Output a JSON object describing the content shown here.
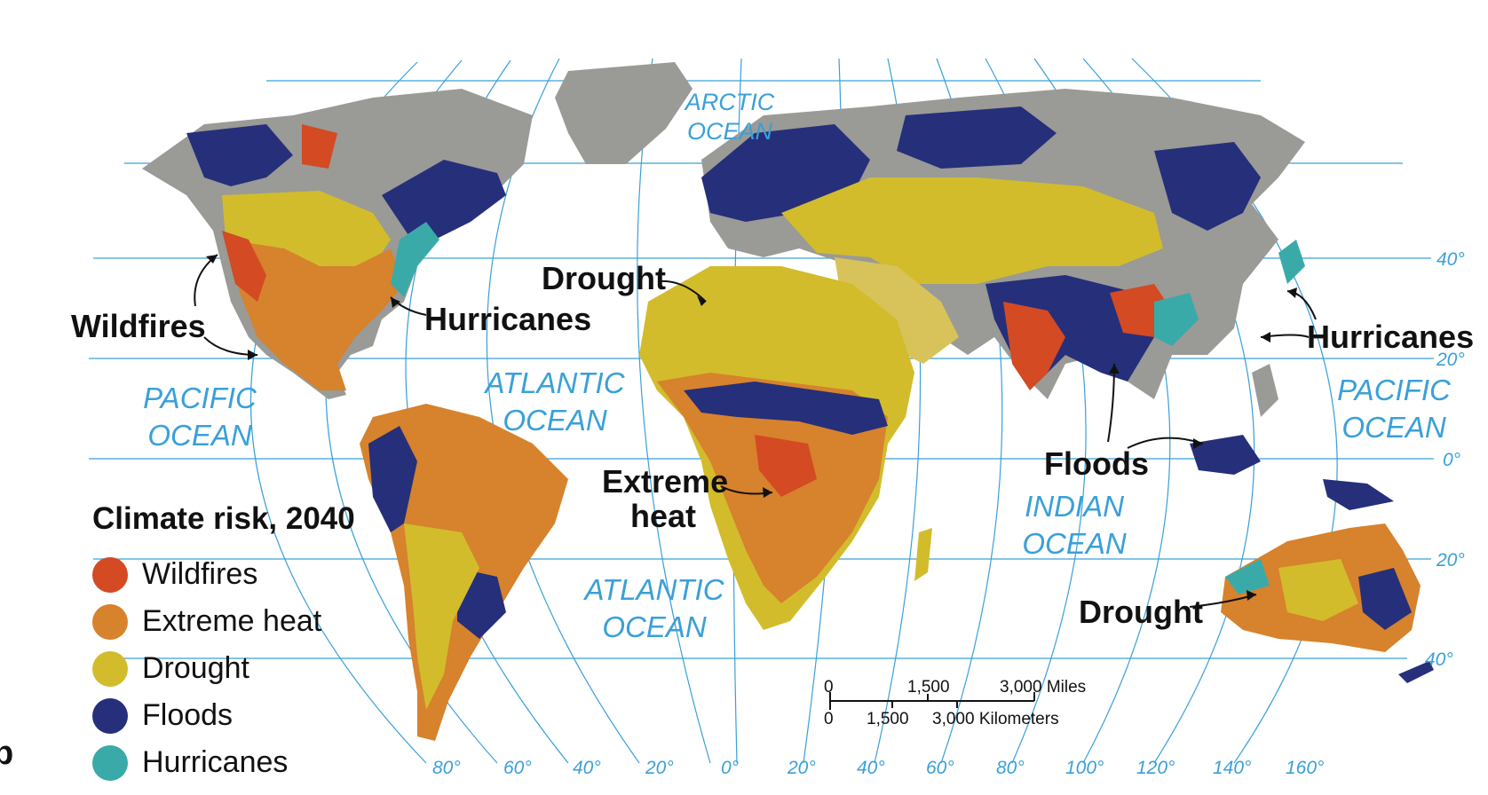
{
  "legend": {
    "title": "Climate risk, 2040",
    "items": [
      {
        "label": "Wildfires",
        "color": "#d34a23"
      },
      {
        "label": "Extreme heat",
        "color": "#d7822c"
      },
      {
        "label": "Drought",
        "color": "#d2bc2c"
      },
      {
        "label": "Floods",
        "color": "#262f7a"
      },
      {
        "label": "Hurricanes",
        "color": "#3aaaa8"
      }
    ]
  },
  "oceans": {
    "arctic": [
      "ARCTIC",
      "OCEAN"
    ],
    "pacific_west": [
      "PACIFIC",
      "OCEAN"
    ],
    "atlantic_north": [
      "ATLANTIC",
      "OCEAN"
    ],
    "atlantic_south": [
      "ATLANTIC",
      "OCEAN"
    ],
    "indian": [
      "INDIAN",
      "OCEAN"
    ],
    "pacific_east": [
      "PACIFIC",
      "OCEAN"
    ]
  },
  "callouts": {
    "wildfires": "Wildfires",
    "hurricanes_na": "Hurricanes",
    "drought_africa": "Drought",
    "extreme_heat": [
      "Extreme",
      "heat"
    ],
    "hurricanes_asia": "Hurricanes",
    "floods": "Floods",
    "drought_australia": "Drought"
  },
  "latitudes": [
    "40°",
    "20°",
    "0°",
    "20°",
    "40°"
  ],
  "longitudes": [
    "80°",
    "60°",
    "40°",
    "20°",
    "0°",
    "20°",
    "40°",
    "60°",
    "80°",
    "100°",
    "120°",
    "140°",
    "160°"
  ],
  "scale_bar": {
    "miles": {
      "zero": "0",
      "mid": "1,500",
      "end": "3,000 Miles"
    },
    "km": {
      "zero": "0",
      "mid": "1,500",
      "end": "3,000 Kilometers"
    }
  },
  "edge_mark": "b",
  "colors": {
    "graticule": "#3aa0d8",
    "no_data_land": "#9a9a96"
  }
}
